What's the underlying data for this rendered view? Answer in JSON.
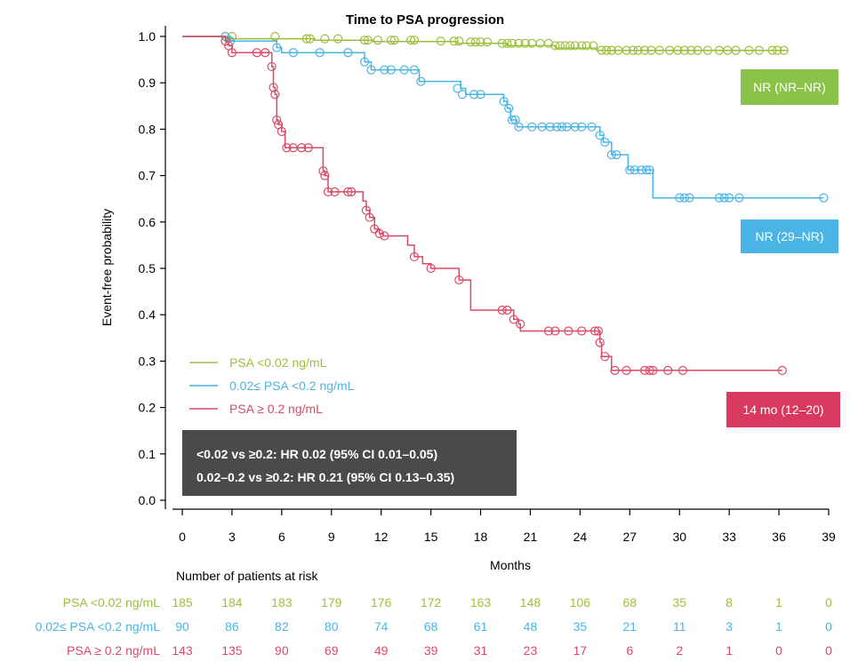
{
  "chart_data": {
    "type": "line",
    "title": "Time to PSA progression",
    "xlabel": "Months",
    "ylabel": "Event-free probability",
    "xlim": [
      0,
      39
    ],
    "ylim": [
      0,
      1
    ],
    "x_ticks": [
      "0",
      "3",
      "6",
      "9",
      "12",
      "15",
      "18",
      "21",
      "24",
      "27",
      "30",
      "33",
      "36",
      "39"
    ],
    "y_ticks": [
      "0.0",
      "0.1",
      "0.2",
      "0.3",
      "0.4",
      "0.5",
      "0.6",
      "0.7",
      "0.8",
      "0.9",
      "1.0"
    ],
    "grid": false,
    "legend_position": "bottom-left",
    "series": [
      {
        "name": "PSA <0.02 ng/mL",
        "color": "#9bbf3c",
        "median_label": "NR (NR–NR)",
        "steps": [
          [
            0,
            1.0
          ],
          [
            2.6,
            0.995
          ],
          [
            8.0,
            0.992
          ],
          [
            11.5,
            0.989
          ],
          [
            16.6,
            0.985
          ],
          [
            19.6,
            0.98
          ],
          [
            22.5,
            0.975
          ],
          [
            25.0,
            0.97
          ],
          [
            36.5,
            0.97
          ]
        ],
        "censors": [
          [
            2.6,
            1.0
          ],
          [
            3.0,
            1.0
          ],
          [
            5.6,
            1.0
          ],
          [
            7.5,
            0.995
          ],
          [
            7.7,
            0.995
          ],
          [
            8.6,
            0.995
          ],
          [
            9.4,
            0.995
          ],
          [
            11.0,
            0.992
          ],
          [
            11.2,
            0.992
          ],
          [
            11.8,
            0.992
          ],
          [
            12.6,
            0.992
          ],
          [
            12.8,
            0.992
          ],
          [
            13.8,
            0.992
          ],
          [
            14.0,
            0.992
          ],
          [
            15.6,
            0.99
          ],
          [
            16.4,
            0.99
          ],
          [
            16.7,
            0.99
          ],
          [
            17.4,
            0.988
          ],
          [
            17.7,
            0.988
          ],
          [
            18.0,
            0.988
          ],
          [
            18.4,
            0.988
          ],
          [
            19.3,
            0.985
          ],
          [
            19.6,
            0.985
          ],
          [
            19.9,
            0.985
          ],
          [
            20.3,
            0.985
          ],
          [
            20.7,
            0.985
          ],
          [
            21.1,
            0.985
          ],
          [
            21.6,
            0.985
          ],
          [
            22.1,
            0.985
          ],
          [
            22.5,
            0.98
          ],
          [
            22.8,
            0.98
          ],
          [
            23.1,
            0.98
          ],
          [
            23.4,
            0.98
          ],
          [
            23.7,
            0.98
          ],
          [
            24.1,
            0.98
          ],
          [
            24.4,
            0.98
          ],
          [
            24.8,
            0.98
          ],
          [
            25.3,
            0.97
          ],
          [
            25.6,
            0.97
          ],
          [
            25.9,
            0.97
          ],
          [
            26.3,
            0.97
          ],
          [
            26.8,
            0.97
          ],
          [
            27.2,
            0.97
          ],
          [
            27.5,
            0.97
          ],
          [
            27.9,
            0.97
          ],
          [
            28.3,
            0.97
          ],
          [
            28.8,
            0.97
          ],
          [
            29.4,
            0.97
          ],
          [
            29.9,
            0.97
          ],
          [
            30.3,
            0.97
          ],
          [
            30.7,
            0.97
          ],
          [
            31.1,
            0.97
          ],
          [
            31.7,
            0.97
          ],
          [
            32.4,
            0.97
          ],
          [
            32.9,
            0.97
          ],
          [
            33.4,
            0.97
          ],
          [
            34.2,
            0.97
          ],
          [
            34.8,
            0.97
          ],
          [
            35.6,
            0.97
          ],
          [
            35.9,
            0.97
          ],
          [
            36.3,
            0.97
          ]
        ]
      },
      {
        "name": "0.02≤ PSA <0.2 ng/mL",
        "color": "#4ab4e4",
        "median_label": "NR (29–NR)",
        "steps": [
          [
            0,
            1.0
          ],
          [
            2.9,
            0.99
          ],
          [
            5.7,
            0.976
          ],
          [
            6.0,
            0.965
          ],
          [
            11.0,
            0.945
          ],
          [
            11.4,
            0.928
          ],
          [
            14.3,
            0.903
          ],
          [
            16.8,
            0.888
          ],
          [
            17.1,
            0.875
          ],
          [
            19.4,
            0.86
          ],
          [
            19.6,
            0.845
          ],
          [
            19.8,
            0.82
          ],
          [
            20.2,
            0.805
          ],
          [
            25.2,
            0.787
          ],
          [
            25.4,
            0.772
          ],
          [
            25.9,
            0.745
          ],
          [
            26.9,
            0.712
          ],
          [
            28.4,
            0.652
          ],
          [
            38.7,
            0.652
          ]
        ],
        "censors": [
          [
            2.6,
            1.0
          ],
          [
            2.9,
            0.99
          ],
          [
            5.7,
            0.976
          ],
          [
            6.7,
            0.965
          ],
          [
            8.3,
            0.965
          ],
          [
            10.0,
            0.965
          ],
          [
            11.0,
            0.945
          ],
          [
            11.4,
            0.928
          ],
          [
            12.2,
            0.928
          ],
          [
            12.6,
            0.928
          ],
          [
            13.4,
            0.928
          ],
          [
            14.0,
            0.928
          ],
          [
            14.4,
            0.903
          ],
          [
            16.6,
            0.888
          ],
          [
            16.9,
            0.875
          ],
          [
            17.6,
            0.875
          ],
          [
            18.0,
            0.875
          ],
          [
            19.4,
            0.86
          ],
          [
            19.7,
            0.845
          ],
          [
            19.9,
            0.82
          ],
          [
            20.1,
            0.82
          ],
          [
            20.3,
            0.805
          ],
          [
            21.1,
            0.805
          ],
          [
            21.7,
            0.805
          ],
          [
            22.2,
            0.805
          ],
          [
            22.6,
            0.805
          ],
          [
            22.9,
            0.805
          ],
          [
            23.2,
            0.805
          ],
          [
            23.7,
            0.805
          ],
          [
            24.1,
            0.805
          ],
          [
            24.7,
            0.805
          ],
          [
            25.2,
            0.787
          ],
          [
            25.5,
            0.772
          ],
          [
            25.9,
            0.745
          ],
          [
            26.2,
            0.745
          ],
          [
            27.0,
            0.712
          ],
          [
            27.3,
            0.712
          ],
          [
            27.7,
            0.712
          ],
          [
            28.0,
            0.712
          ],
          [
            28.2,
            0.712
          ],
          [
            30.0,
            0.652
          ],
          [
            30.3,
            0.652
          ],
          [
            30.6,
            0.652
          ],
          [
            32.4,
            0.652
          ],
          [
            32.7,
            0.652
          ],
          [
            33.0,
            0.652
          ],
          [
            33.6,
            0.652
          ],
          [
            38.7,
            0.652
          ]
        ]
      },
      {
        "name": "PSA ≥ 0.2 ng/mL",
        "color": "#d94a66",
        "median_label": "14 mo (12–20)",
        "steps": [
          [
            0,
            1.0
          ],
          [
            2.6,
            0.99
          ],
          [
            2.8,
            0.98
          ],
          [
            3.0,
            0.965
          ],
          [
            5.4,
            0.935
          ],
          [
            5.5,
            0.89
          ],
          [
            5.6,
            0.875
          ],
          [
            5.7,
            0.82
          ],
          [
            5.8,
            0.81
          ],
          [
            6.0,
            0.795
          ],
          [
            6.2,
            0.76
          ],
          [
            8.5,
            0.71
          ],
          [
            8.6,
            0.7
          ],
          [
            8.8,
            0.665
          ],
          [
            10.9,
            0.645
          ],
          [
            11.1,
            0.625
          ],
          [
            11.3,
            0.61
          ],
          [
            11.6,
            0.585
          ],
          [
            11.9,
            0.575
          ],
          [
            12.1,
            0.57
          ],
          [
            13.6,
            0.55
          ],
          [
            14.0,
            0.525
          ],
          [
            14.5,
            0.51
          ],
          [
            15.0,
            0.5
          ],
          [
            16.7,
            0.475
          ],
          [
            17.4,
            0.41
          ],
          [
            20.0,
            0.39
          ],
          [
            20.3,
            0.38
          ],
          [
            20.4,
            0.365
          ],
          [
            25.2,
            0.34
          ],
          [
            25.3,
            0.31
          ],
          [
            25.9,
            0.28
          ],
          [
            36.2,
            0.28
          ]
        ],
        "censors": [
          [
            2.6,
            0.99
          ],
          [
            2.8,
            0.98
          ],
          [
            3.0,
            0.965
          ],
          [
            4.5,
            0.965
          ],
          [
            5.0,
            0.965
          ],
          [
            5.4,
            0.935
          ],
          [
            5.5,
            0.89
          ],
          [
            5.6,
            0.875
          ],
          [
            5.7,
            0.82
          ],
          [
            5.8,
            0.81
          ],
          [
            6.0,
            0.795
          ],
          [
            6.3,
            0.76
          ],
          [
            6.7,
            0.76
          ],
          [
            7.2,
            0.76
          ],
          [
            7.6,
            0.76
          ],
          [
            8.5,
            0.71
          ],
          [
            8.6,
            0.7
          ],
          [
            8.8,
            0.665
          ],
          [
            9.2,
            0.665
          ],
          [
            10.0,
            0.665
          ],
          [
            10.2,
            0.665
          ],
          [
            11.1,
            0.625
          ],
          [
            11.3,
            0.61
          ],
          [
            11.6,
            0.585
          ],
          [
            11.9,
            0.575
          ],
          [
            12.2,
            0.57
          ],
          [
            14.0,
            0.525
          ],
          [
            15.0,
            0.5
          ],
          [
            16.7,
            0.475
          ],
          [
            19.3,
            0.41
          ],
          [
            19.6,
            0.41
          ],
          [
            20.0,
            0.39
          ],
          [
            20.4,
            0.38
          ],
          [
            22.1,
            0.365
          ],
          [
            22.5,
            0.365
          ],
          [
            23.3,
            0.365
          ],
          [
            24.1,
            0.365
          ],
          [
            24.9,
            0.365
          ],
          [
            25.1,
            0.365
          ],
          [
            25.2,
            0.34
          ],
          [
            25.5,
            0.31
          ],
          [
            26.1,
            0.28
          ],
          [
            26.8,
            0.28
          ],
          [
            27.9,
            0.28
          ],
          [
            28.2,
            0.28
          ],
          [
            28.4,
            0.28
          ],
          [
            29.3,
            0.28
          ],
          [
            30.2,
            0.28
          ],
          [
            36.2,
            0.28
          ]
        ]
      }
    ],
    "annotation": {
      "lines": [
        "<0.02 vs ≥0.2: HR 0.02 (95% CI 0.01–0.05)",
        "0.02–0.2 vs ≥0.2: HR 0.21 (95% CI 0.13–0.35)"
      ],
      "background": "#4a4a4a"
    },
    "risk_table": {
      "title": "Number of patients at risk",
      "rows": [
        {
          "label": "PSA <0.02 ng/mL",
          "values": [
            "185",
            "184",
            "183",
            "179",
            "176",
            "172",
            "163",
            "148",
            "106",
            "68",
            "35",
            "8",
            "1",
            "0"
          ]
        },
        {
          "label": "0.02≤ PSA <0.2 ng/mL",
          "values": [
            "90",
            "86",
            "82",
            "80",
            "74",
            "68",
            "61",
            "48",
            "35",
            "21",
            "11",
            "3",
            "1",
            "0"
          ]
        },
        {
          "label": "PSA ≥ 0.2 ng/mL",
          "values": [
            "143",
            "135",
            "90",
            "69",
            "49",
            "39",
            "31",
            "23",
            "17",
            "6",
            "2",
            "1",
            "0",
            "0"
          ]
        }
      ]
    },
    "median_colors": [
      "#8bc34a",
      "#4ab4e4",
      "#d9395e"
    ]
  }
}
